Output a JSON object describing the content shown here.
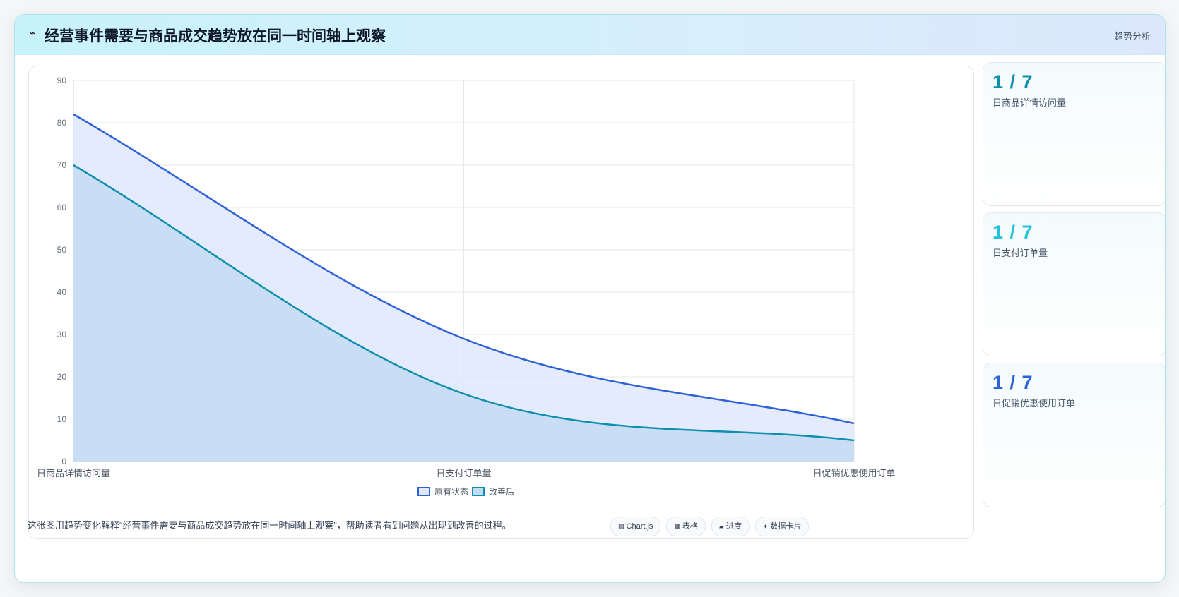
{
  "header": {
    "icon": "⌁",
    "title": "经营事件需要与商品成交趋势放在同一时间轴上观察",
    "tag": "趋势分析"
  },
  "chart_data": {
    "type": "area",
    "categories": [
      "日商品详情访问量",
      "日支付订单量",
      "日促销优惠使用订单"
    ],
    "series": [
      {
        "name": "原有状态",
        "values": [
          82,
          29,
          9
        ],
        "color": "#2f62d6",
        "fill": "#dfe8fb"
      },
      {
        "name": "改善后",
        "values": [
          70,
          16,
          5
        ],
        "color": "#0e8fae",
        "fill": "#c4dcf2"
      }
    ],
    "ylim": [
      0,
      90
    ],
    "yticks": [
      0,
      10,
      20,
      30,
      40,
      50,
      60,
      70,
      80,
      90
    ],
    "grid": true,
    "legend": "bottom"
  },
  "kpis": [
    {
      "value": "1 / 7",
      "label": "日商品详情访问量",
      "color": "#0e8fae"
    },
    {
      "value": "1 / 7",
      "label": "日支付订单量",
      "color": "#22c2dc"
    },
    {
      "value": "1 / 7",
      "label": "日促销优惠使用订单",
      "color": "#2f62d6"
    }
  ],
  "footer": {
    "text": "这张图用趋势变化解释“经营事件需要与商品成交趋势放在同一时间轴上观察”，帮助读者看到问题从出现到改善的过程。",
    "chips": [
      {
        "icon": "▤",
        "label": "Chart.js"
      },
      {
        "icon": "▦",
        "label": "表格"
      },
      {
        "icon": "▰",
        "label": "进度"
      },
      {
        "icon": "✦",
        "label": "数据卡片"
      }
    ]
  }
}
